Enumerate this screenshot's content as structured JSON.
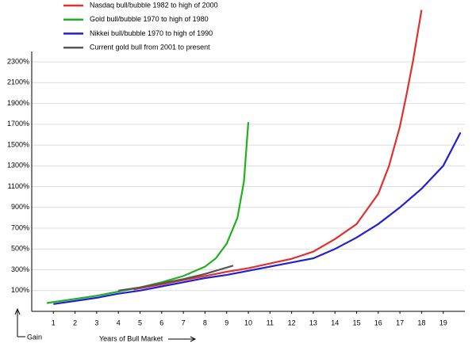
{
  "chart_data": {
    "type": "line",
    "x_label": "Years of Bull Market",
    "y_label": "Gain",
    "xlim": [
      0,
      20
    ],
    "ylim": [
      -100,
      2400
    ],
    "xticks": [
      1,
      2,
      3,
      4,
      5,
      6,
      7,
      8,
      9,
      10,
      11,
      12,
      13,
      14,
      15,
      16,
      17,
      18,
      19
    ],
    "yticks": [
      {
        "value": 100,
        "label": "100%"
      },
      {
        "value": 300,
        "label": "300%"
      },
      {
        "value": 500,
        "label": "500%"
      },
      {
        "value": 700,
        "label": "700%"
      },
      {
        "value": 900,
        "label": "900%"
      },
      {
        "value": 1100,
        "label": "1100%"
      },
      {
        "value": 1300,
        "label": "1300%"
      },
      {
        "value": 1500,
        "label": "1500%"
      },
      {
        "value": 1700,
        "label": "1700%"
      },
      {
        "value": 1900,
        "label": "1900%"
      },
      {
        "value": 2100,
        "label": "2100%"
      },
      {
        "value": 2300,
        "label": "2300%"
      }
    ],
    "grid": true,
    "series": [
      {
        "name": "Nasdaq bull/bubble 1982 to high of 2000",
        "color": "#e03030",
        "x": [
          4.7,
          6,
          7,
          8,
          9,
          10,
          11,
          12,
          13,
          14,
          15,
          16,
          16.5,
          17,
          17.3,
          17.6,
          18
        ],
        "values": [
          110,
          160,
          200,
          240,
          280,
          315,
          360,
          405,
          475,
          595,
          740,
          1030,
          1300,
          1680,
          1980,
          2305,
          2800
        ]
      },
      {
        "name": "Gold bull/bubble 1970 to high of 1980",
        "color": "#20b020",
        "x": [
          0.7,
          2,
          3,
          4,
          5,
          6,
          7,
          8,
          8.5,
          9,
          9.5,
          9.8,
          10
        ],
        "values": [
          -20,
          20,
          50,
          90,
          130,
          180,
          240,
          330,
          410,
          550,
          800,
          1150,
          1720
        ]
      },
      {
        "name": "Nikkei bull/bubble 1970 to high of 1990",
        "color": "#2020d0",
        "x": [
          1,
          2,
          3,
          4,
          5,
          6,
          7,
          8,
          9,
          10,
          11,
          12,
          13,
          14,
          15,
          16,
          17,
          18,
          19,
          19.8
        ],
        "values": [
          -30,
          0,
          30,
          70,
          100,
          140,
          180,
          220,
          250,
          290,
          330,
          370,
          410,
          500,
          610,
          740,
          900,
          1080,
          1300,
          1620
        ]
      },
      {
        "name": "Current gold bull from 2001 to present",
        "color": "#555555",
        "x": [
          4,
          5,
          6,
          7,
          8,
          9.3
        ],
        "values": [
          100,
          130,
          170,
          210,
          260,
          340
        ]
      }
    ]
  }
}
